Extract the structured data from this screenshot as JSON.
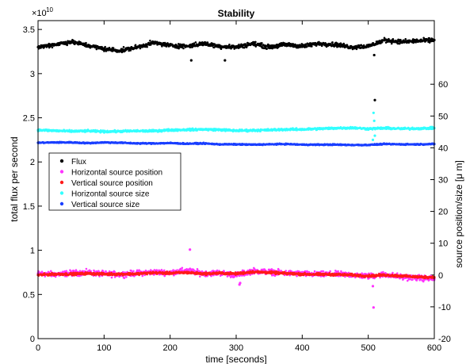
{
  "chart_data": {
    "type": "scatter",
    "title": "Stability",
    "xlabel": "time [seconds]",
    "ylabel_left": "total flux per second",
    "ylabel_right": "source position/size [μ m]",
    "left_exponent": "×10",
    "left_exponent_power": "10",
    "xlim": [
      0,
      600
    ],
    "ylim_left": [
      0,
      3.6
    ],
    "ylim_right": [
      -20,
      80
    ],
    "x_ticks": [
      "0",
      "100",
      "200",
      "300",
      "400",
      "500",
      "600"
    ],
    "y_left_ticks": [
      "0",
      "0.5",
      "1",
      "1.5",
      "2",
      "2.5",
      "3",
      "3.5"
    ],
    "y_right_ticks": [
      "-20",
      "-10",
      "0",
      "10",
      "20",
      "30",
      "40",
      "50",
      "60"
    ],
    "legend_placement": "middle-left",
    "grid": false,
    "series": [
      {
        "name": "Flux",
        "axis": "left",
        "color": "#000000",
        "x": [
          0,
          25,
          50,
          75,
          100,
          125,
          150,
          175,
          200,
          225,
          250,
          275,
          300,
          325,
          350,
          375,
          400,
          425,
          450,
          475,
          500,
          525,
          550,
          575,
          600
        ],
        "y": [
          3.3,
          3.33,
          3.36,
          3.32,
          3.28,
          3.26,
          3.3,
          3.35,
          3.32,
          3.31,
          3.34,
          3.31,
          3.3,
          3.34,
          3.3,
          3.33,
          3.31,
          3.34,
          3.33,
          3.3,
          3.31,
          3.38,
          3.36,
          3.37,
          3.38
        ]
      },
      {
        "name": "Horizontal source position",
        "axis": "right",
        "color": "#ff33ff",
        "x": [
          0,
          25,
          50,
          75,
          100,
          125,
          150,
          175,
          200,
          225,
          250,
          275,
          300,
          325,
          350,
          375,
          400,
          425,
          450,
          475,
          500,
          525,
          550,
          575,
          600
        ],
        "y": [
          0.5,
          0.2,
          0.6,
          0.8,
          0.3,
          0.2,
          0.6,
          0.9,
          0.8,
          1.4,
          0.5,
          0.7,
          0.0,
          1.3,
          1.0,
          0.6,
          0.4,
          0.2,
          0.3,
          0.1,
          -0.4,
          0.2,
          -0.6,
          -0.9,
          -1.2
        ]
      },
      {
        "name": "Vertical source position",
        "axis": "right",
        "color": "#ff1a1a",
        "x": [
          0,
          25,
          50,
          75,
          100,
          125,
          150,
          175,
          200,
          225,
          250,
          275,
          300,
          325,
          350,
          375,
          400,
          425,
          450,
          475,
          500,
          525,
          550,
          575,
          600
        ],
        "y": [
          0.0,
          0.3,
          0.3,
          0.5,
          0.3,
          0.3,
          0.4,
          0.7,
          0.6,
          0.8,
          0.4,
          0.6,
          0.4,
          1.0,
          0.8,
          0.5,
          0.3,
          0.2,
          0.2,
          0.0,
          -0.3,
          0.0,
          -0.3,
          -0.6,
          -0.7
        ]
      },
      {
        "name": "Horizontal source size",
        "axis": "right",
        "color": "#33ffff",
        "x": [
          0,
          25,
          50,
          75,
          100,
          125,
          150,
          175,
          200,
          225,
          250,
          275,
          300,
          325,
          350,
          375,
          400,
          425,
          450,
          475,
          500,
          525,
          550,
          575,
          600
        ],
        "y": [
          45.6,
          45.4,
          45.2,
          45.3,
          45.1,
          45.2,
          45.3,
          45.3,
          45.6,
          45.7,
          45.8,
          45.7,
          45.4,
          45.5,
          45.6,
          45.8,
          45.8,
          46.0,
          46.2,
          46.3,
          46.0,
          46.2,
          46.0,
          46.1,
          46.2
        ]
      },
      {
        "name": "Vertical source size",
        "axis": "right",
        "color": "#1a3fff",
        "x": [
          0,
          25,
          50,
          75,
          100,
          125,
          150,
          175,
          200,
          225,
          250,
          275,
          300,
          325,
          350,
          375,
          400,
          425,
          450,
          475,
          500,
          525,
          550,
          575,
          600
        ],
        "y": [
          41.6,
          41.7,
          41.7,
          41.5,
          41.7,
          41.6,
          41.4,
          41.4,
          41.5,
          41.3,
          41.4,
          41.1,
          41.1,
          41.0,
          41.1,
          41.2,
          41.0,
          41.0,
          41.0,
          40.9,
          40.9,
          41.2,
          41.1,
          41.1,
          41.2
        ]
      }
    ],
    "outliers": [
      {
        "series": "Flux",
        "x": 232,
        "y": 3.15
      },
      {
        "series": "Flux",
        "x": 283,
        "y": 3.15
      },
      {
        "series": "Flux",
        "x": 509,
        "y": 3.21
      },
      {
        "series": "Flux",
        "x": 510,
        "y": 2.7
      },
      {
        "series": "Horizontal source size",
        "x": 508,
        "y": 51.0
      },
      {
        "series": "Horizontal source size",
        "x": 509,
        "y": 48.5
      },
      {
        "series": "Horizontal source size",
        "x": 510,
        "y": 43.8
      },
      {
        "series": "Horizontal source size",
        "x": 507,
        "y": 42.5
      },
      {
        "series": "Horizontal source position",
        "x": 230,
        "y": 8.0
      },
      {
        "series": "Horizontal source position",
        "x": 508,
        "y": -10.2
      },
      {
        "series": "Horizontal source position",
        "x": 507,
        "y": -3.5
      },
      {
        "series": "Horizontal source position",
        "x": 305,
        "y": -3.0
      },
      {
        "series": "Horizontal source position",
        "x": 306,
        "y": -2.5
      }
    ]
  }
}
